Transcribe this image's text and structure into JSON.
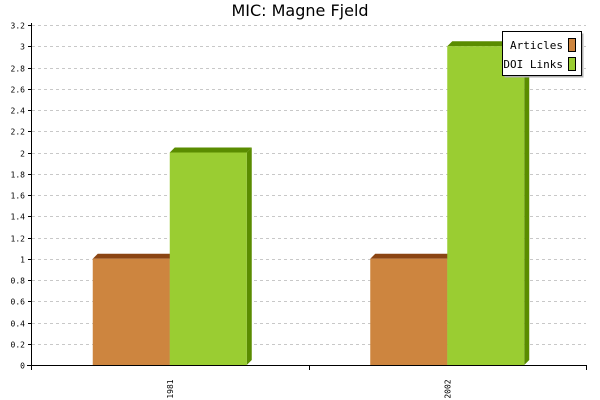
{
  "chart_data": {
    "type": "bar",
    "title": "MIC: Magne Fjeld",
    "categories": [
      "1981",
      "2002"
    ],
    "series": [
      {
        "name": "Articles",
        "values": [
          1,
          1
        ],
        "color": "#cd853f",
        "side_color": "#8b4513"
      },
      {
        "name": "DOI Links",
        "values": [
          2,
          3
        ],
        "color": "#9acd32",
        "side_color": "#5a8c00"
      }
    ],
    "ylim": [
      0,
      3.2
    ],
    "yticks": [
      "0",
      "0.2",
      "0.4",
      "0.6",
      "0.8",
      "1",
      "1.2",
      "1.4",
      "1.6",
      "1.8",
      "2",
      "2.2",
      "2.4",
      "2.6",
      "2.8",
      "3",
      "3.2"
    ],
    "grid": true,
    "legend_position": "top-right",
    "xlabel": "",
    "ylabel": ""
  }
}
